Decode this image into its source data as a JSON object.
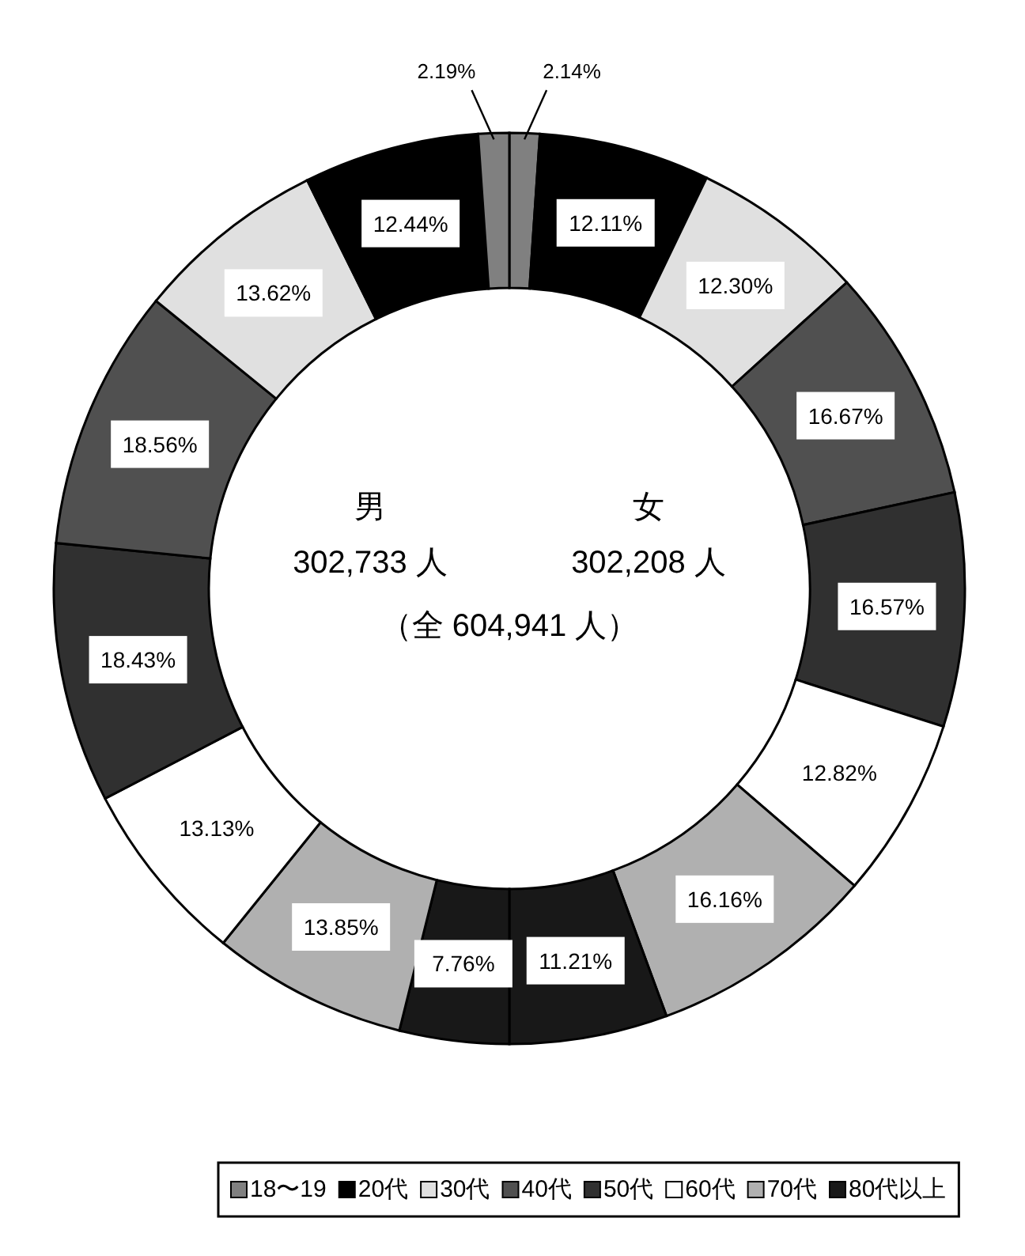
{
  "chart_data": {
    "type": "donut",
    "categories": [
      "18〜19",
      "20代",
      "30代",
      "40代",
      "50代",
      "60代",
      "70代",
      "80代以上",
      null,
      null,
      null,
      null,
      null,
      null,
      null,
      null
    ],
    "values": [
      2.14,
      12.11,
      12.3,
      16.67,
      16.57,
      12.82,
      16.16,
      11.21,
      7.76,
      13.85,
      13.13,
      18.43,
      18.56,
      13.62,
      12.44,
      2.19
    ],
    "value_labels": [
      "2.14%",
      "12.11%",
      "12.30%",
      "16.67%",
      "16.57%",
      "12.82%",
      "16.16%",
      "11.21%",
      "7.76%",
      "13.85%",
      "13.13%",
      "18.43%",
      "18.56%",
      "13.62%",
      "12.44%",
      "2.19%"
    ],
    "colors": [
      "#808080",
      "#000000",
      "#e0e0e0",
      "#505050",
      "#303030",
      "#ffffff",
      "#b0b0b0",
      "#181818",
      "#181818",
      "#b0b0b0",
      "#ffffff",
      "#303030",
      "#505050",
      "#e0e0e0",
      "#000000",
      "#808080"
    ],
    "annotations": [
      "男",
      "302,733 人",
      "女",
      "302,208 人",
      "（全 604,941 人）"
    ],
    "legend": "bottom"
  }
}
